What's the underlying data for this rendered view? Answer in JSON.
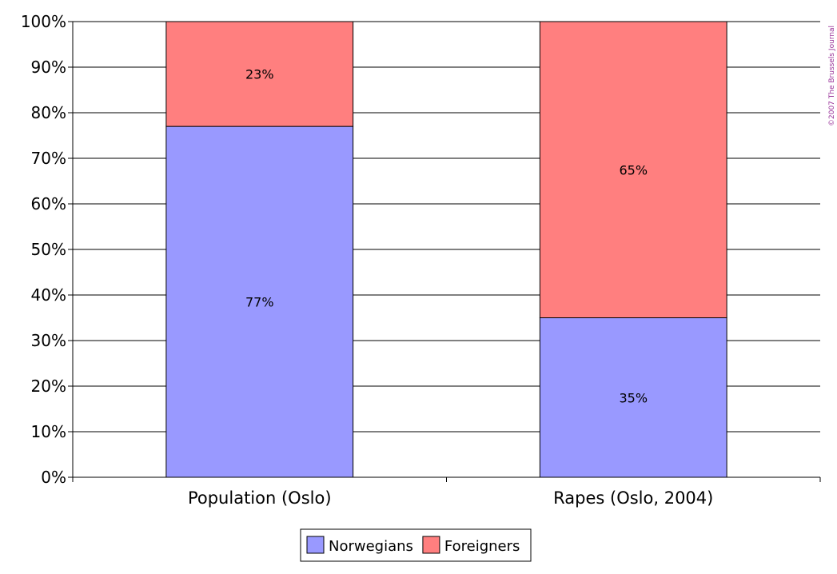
{
  "chart_data": {
    "type": "bar",
    "stacked": true,
    "categories": [
      "Population (Oslo)",
      "Rapes (Oslo, 2004)"
    ],
    "series": [
      {
        "name": "Norwegians",
        "values": [
          77,
          35
        ],
        "labels": [
          "77%",
          "35%"
        ],
        "color": "#9999ff"
      },
      {
        "name": "Foreigners",
        "values": [
          23,
          65
        ],
        "labels": [
          "23%",
          "65%"
        ],
        "color": "#ff7f7f"
      }
    ],
    "ylim": [
      0,
      100
    ],
    "yticks": [
      "0%",
      "10%",
      "20%",
      "30%",
      "40%",
      "50%",
      "60%",
      "70%",
      "80%",
      "90%",
      "100%"
    ],
    "grid": true,
    "legend_position": "bottom",
    "copyright": "©2007 The Brussels Journal",
    "copyright_color": "#993399"
  }
}
